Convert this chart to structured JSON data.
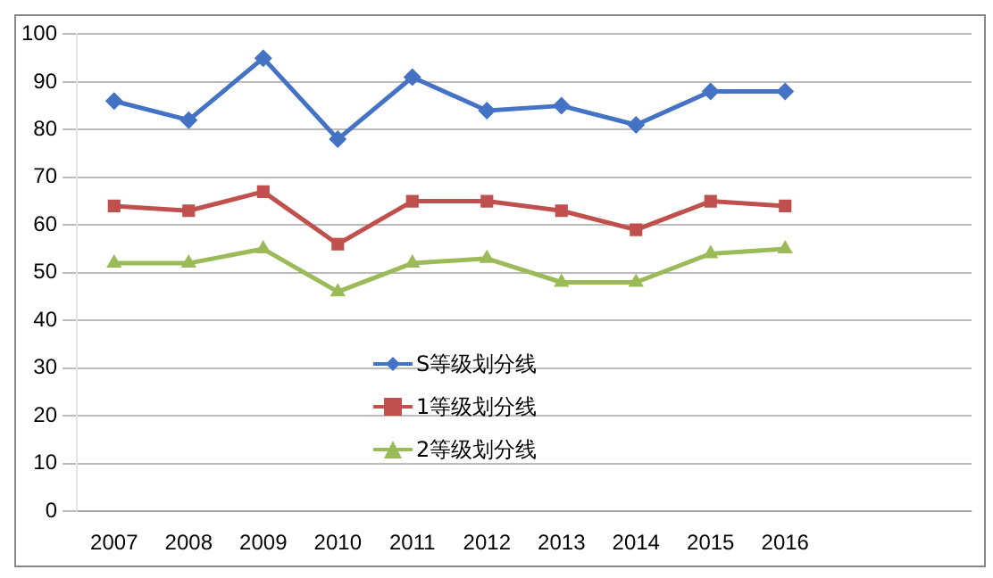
{
  "chart_data": {
    "type": "line",
    "categories": [
      "2007",
      "2008",
      "2009",
      "2010",
      "2011",
      "2012",
      "2013",
      "2014",
      "2015",
      "2016",
      null,
      null
    ],
    "series": [
      {
        "name": "S等级划分线",
        "color": "#4472c4",
        "marker": "diamond",
        "values": [
          86,
          82,
          95,
          78,
          91,
          84,
          85,
          81,
          88,
          88,
          null,
          null
        ]
      },
      {
        "name": "1等级划分线",
        "color": "#c0504d",
        "marker": "square",
        "values": [
          64,
          63,
          67,
          56,
          65,
          65,
          63,
          59,
          65,
          64,
          null,
          null
        ]
      },
      {
        "name": "2等级划分线",
        "color": "#9bbb59",
        "marker": "triangle",
        "values": [
          52,
          52,
          55,
          46,
          52,
          53,
          48,
          48,
          54,
          55,
          null,
          null
        ]
      }
    ],
    "ylim": [
      0,
      100
    ],
    "yticks": [
      0,
      10,
      20,
      30,
      40,
      50,
      60,
      70,
      80,
      90,
      100
    ],
    "grid": "y",
    "legend": "center",
    "line_style": "solid"
  }
}
